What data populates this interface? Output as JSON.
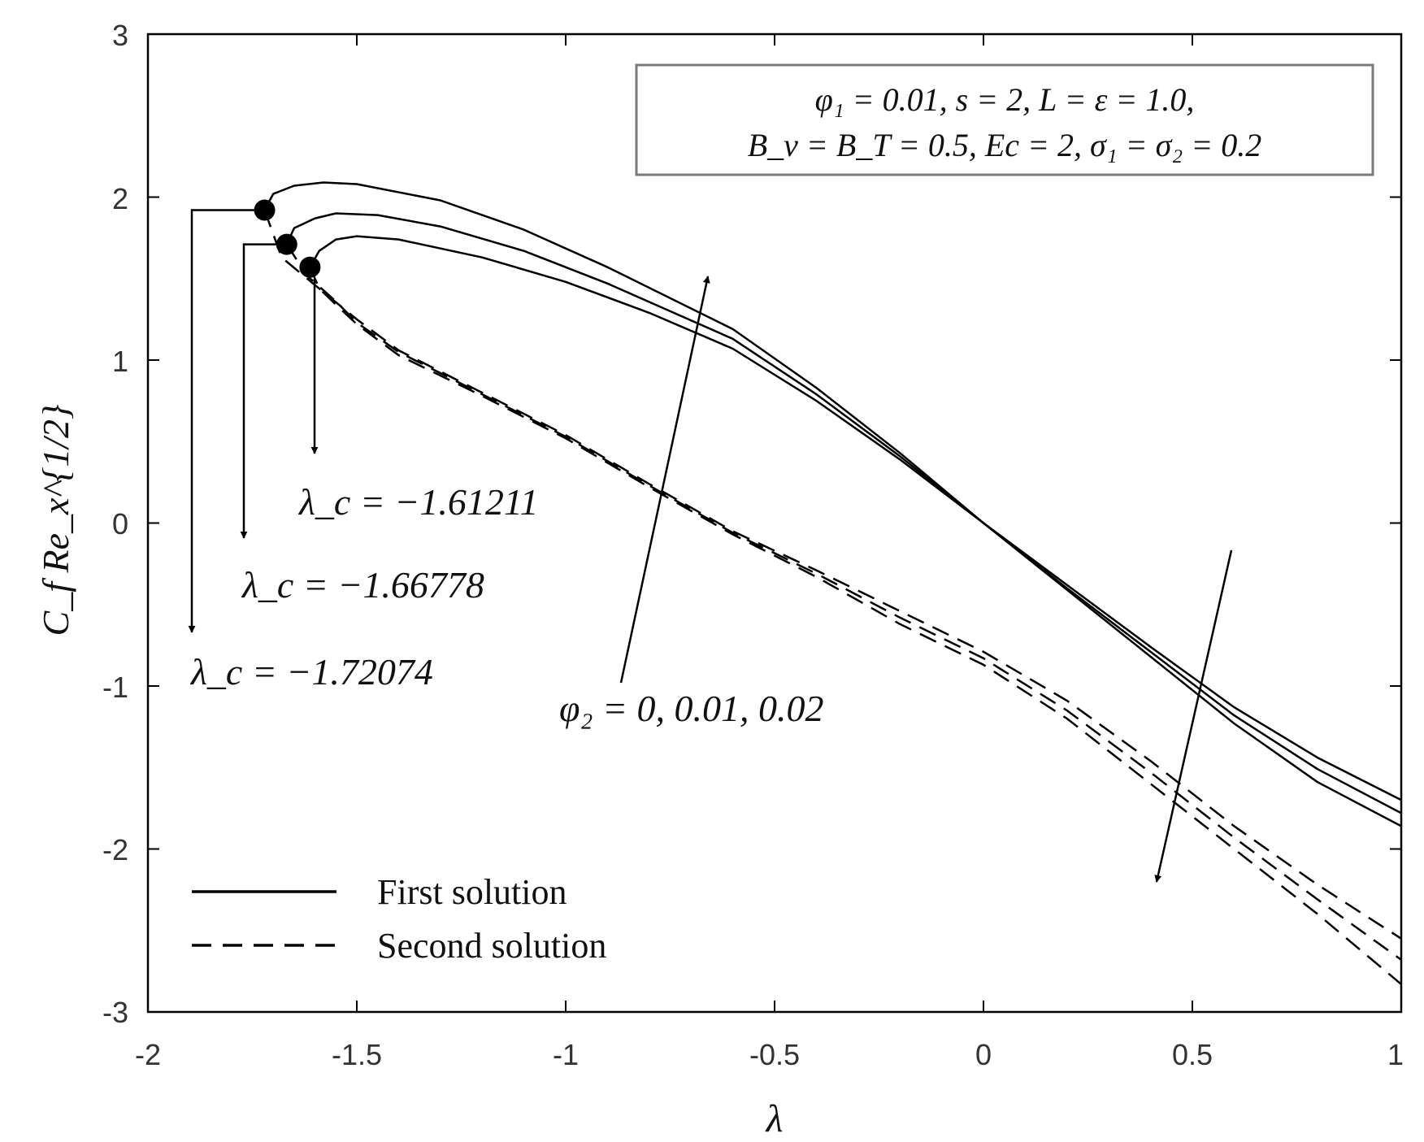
{
  "chart_data": {
    "type": "line",
    "xlabel": "λ",
    "ylabel": "C_f Re_x^{1/2}",
    "xlim": [
      -2,
      1
    ],
    "ylim": [
      -3,
      3
    ],
    "x_ticks": [
      "-2",
      "-1.5",
      "-1",
      "-0.5",
      "0",
      "0.5",
      "1"
    ],
    "y_ticks": [
      "-3",
      "-2",
      "-1",
      "0",
      "1",
      "2",
      "3"
    ],
    "parameter_box": {
      "line1": "φ₁ = 0.01, s = 2, L = ε = 1.0,",
      "line2": "B_v = B_T = 0.5, Ec = 2, σ₁ = σ₂ = 0.2"
    },
    "legend": [
      {
        "label": "First solution",
        "style": "solid"
      },
      {
        "label": "Second solution",
        "style": "dashed"
      }
    ],
    "annotations": {
      "critical_labels": [
        "λ_c = −1.61211",
        "λ_c = −1.66778",
        "λ_c = −1.72074"
      ],
      "phi2_label": "φ₂ = 0, 0.01, 0.02"
    },
    "series": [
      {
        "name": "φ₂ = 0",
        "lambda_c": -1.61211,
        "critical_point": [
          -1.61211,
          1.57
        ],
        "first_solution": [
          [
            -1.61211,
            1.57
          ],
          [
            -1.59,
            1.67
          ],
          [
            -1.55,
            1.74
          ],
          [
            -1.5,
            1.76
          ],
          [
            -1.4,
            1.74
          ],
          [
            -1.2,
            1.63
          ],
          [
            -1.0,
            1.48
          ],
          [
            -0.8,
            1.29
          ],
          [
            -0.6,
            1.07
          ],
          [
            -0.4,
            0.75
          ],
          [
            -0.2,
            0.39
          ],
          [
            0.0,
            0.0
          ],
          [
            0.2,
            -0.41
          ],
          [
            0.4,
            -0.82
          ],
          [
            0.6,
            -1.23
          ],
          [
            0.8,
            -1.59
          ],
          [
            1.0,
            -1.86
          ]
        ],
        "second_solution": [
          [
            -1.61211,
            1.57
          ],
          [
            -1.59,
            1.44
          ],
          [
            -1.55,
            1.34
          ],
          [
            -1.5,
            1.22
          ],
          [
            -1.4,
            1.03
          ],
          [
            -1.2,
            0.78
          ],
          [
            -1.0,
            0.52
          ],
          [
            -0.8,
            0.22
          ],
          [
            -0.6,
            -0.07
          ],
          [
            -0.4,
            -0.33
          ],
          [
            -0.2,
            -0.62
          ],
          [
            0.0,
            -0.87
          ],
          [
            0.2,
            -1.2
          ],
          [
            0.4,
            -1.6
          ],
          [
            0.6,
            -2.0
          ],
          [
            0.8,
            -2.4
          ],
          [
            1.0,
            -2.83
          ]
        ]
      },
      {
        "name": "φ₂ = 0.01",
        "lambda_c": -1.66778,
        "critical_point": [
          -1.66778,
          1.71
        ],
        "first_solution": [
          [
            -1.66778,
            1.71
          ],
          [
            -1.65,
            1.81
          ],
          [
            -1.6,
            1.87
          ],
          [
            -1.55,
            1.9
          ],
          [
            -1.45,
            1.89
          ],
          [
            -1.3,
            1.82
          ],
          [
            -1.1,
            1.67
          ],
          [
            -0.9,
            1.47
          ],
          [
            -0.6,
            1.13
          ],
          [
            -0.4,
            0.79
          ],
          [
            -0.2,
            0.41
          ],
          [
            0.0,
            0.0
          ],
          [
            0.2,
            -0.4
          ],
          [
            0.4,
            -0.79
          ],
          [
            0.6,
            -1.18
          ],
          [
            0.8,
            -1.51
          ],
          [
            1.0,
            -1.78
          ]
        ],
        "second_solution": [
          [
            -1.66778,
            1.71
          ],
          [
            -1.62,
            1.52
          ],
          [
            -1.55,
            1.36
          ],
          [
            -1.5,
            1.23
          ],
          [
            -1.4,
            1.05
          ],
          [
            -1.2,
            0.79
          ],
          [
            -1.0,
            0.53
          ],
          [
            -0.8,
            0.23
          ],
          [
            -0.6,
            -0.06
          ],
          [
            -0.4,
            -0.31
          ],
          [
            -0.2,
            -0.58
          ],
          [
            0.0,
            -0.83
          ],
          [
            0.2,
            -1.15
          ],
          [
            0.4,
            -1.53
          ],
          [
            0.6,
            -1.93
          ],
          [
            0.8,
            -2.31
          ],
          [
            1.0,
            -2.68
          ]
        ]
      },
      {
        "name": "φ₂ = 0.02",
        "lambda_c": -1.72074,
        "critical_point": [
          -1.72074,
          1.92
        ],
        "first_solution": [
          [
            -1.72074,
            1.92
          ],
          [
            -1.7,
            2.02
          ],
          [
            -1.65,
            2.07
          ],
          [
            -1.58,
            2.09
          ],
          [
            -1.5,
            2.08
          ],
          [
            -1.3,
            1.98
          ],
          [
            -1.1,
            1.8
          ],
          [
            -0.9,
            1.57
          ],
          [
            -0.6,
            1.19
          ],
          [
            -0.4,
            0.83
          ],
          [
            -0.2,
            0.43
          ],
          [
            0.0,
            0.0
          ],
          [
            0.2,
            -0.38
          ],
          [
            0.4,
            -0.76
          ],
          [
            0.6,
            -1.13
          ],
          [
            0.8,
            -1.44
          ],
          [
            1.0,
            -1.7
          ]
        ],
        "second_solution": [
          [
            -1.72074,
            1.92
          ],
          [
            -1.68,
            1.63
          ],
          [
            -1.6,
            1.46
          ],
          [
            -1.5,
            1.25
          ],
          [
            -1.4,
            1.06
          ],
          [
            -1.2,
            0.8
          ],
          [
            -1.0,
            0.54
          ],
          [
            -0.8,
            0.24
          ],
          [
            -0.6,
            -0.05
          ],
          [
            -0.4,
            -0.29
          ],
          [
            -0.2,
            -0.54
          ],
          [
            0.0,
            -0.79
          ],
          [
            0.2,
            -1.09
          ],
          [
            0.4,
            -1.46
          ],
          [
            0.6,
            -1.86
          ],
          [
            0.8,
            -2.22
          ],
          [
            1.0,
            -2.55
          ]
        ]
      }
    ]
  }
}
